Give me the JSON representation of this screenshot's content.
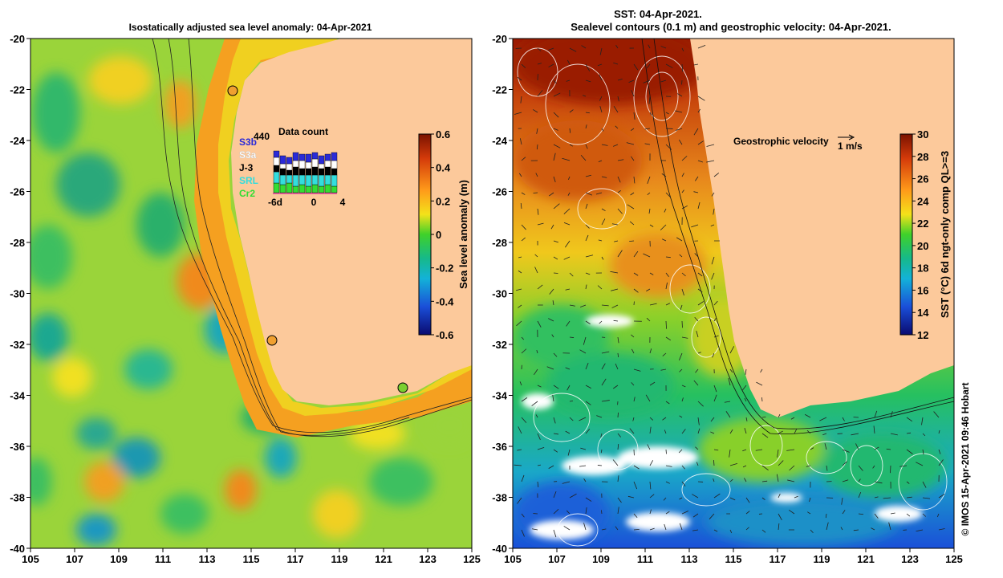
{
  "left_panel": {
    "title": "Isostatically adjusted sea level anomaly: 04-Apr-2021",
    "xticks": [
      "105",
      "107",
      "109",
      "111",
      "113",
      "115",
      "117",
      "119",
      "121",
      "123",
      "125"
    ],
    "yticks": [
      "-20",
      "-22",
      "-24",
      "-26",
      "-28",
      "-30",
      "-32",
      "-34",
      "-36",
      "-38",
      "-40"
    ],
    "colorbar": {
      "label": "Sea level anomaly (m)",
      "ticks": [
        "0.6",
        "0.4",
        "0.2",
        "0",
        "-0.2",
        "-0.4",
        "-0.6"
      ],
      "range": [
        -0.6,
        0.6
      ]
    },
    "data_count": {
      "title": "Data count",
      "max_label": "440",
      "x_labels": [
        "-6d",
        "0",
        "4"
      ],
      "satellites": [
        {
          "name": "S3b",
          "color": "#2a2ad8"
        },
        {
          "name": "S3a",
          "color": "#ffffff"
        },
        {
          "name": "J-3",
          "color": "#000000"
        },
        {
          "name": "SRL",
          "color": "#33dddd"
        },
        {
          "name": "Cr2",
          "color": "#33dd33"
        }
      ]
    }
  },
  "right_panel": {
    "title_line1": "SST: 04-Apr-2021.",
    "title_line2": "Sealevel contours (0.1 m) and geostrophic velocity: 04-Apr-2021.",
    "xticks": [
      "105",
      "107",
      "109",
      "111",
      "113",
      "115",
      "117",
      "119",
      "121",
      "123",
      "125"
    ],
    "yticks": [
      "-20",
      "-22",
      "-24",
      "-26",
      "-28",
      "-30",
      "-32",
      "-34",
      "-36",
      "-38",
      "-40"
    ],
    "velocity_label": "Geostrophic velocity",
    "velocity_scale": "1 m/s",
    "colorbar": {
      "label": "SST (°C) 6d ngt-only comp QL>=3",
      "ticks": [
        "30",
        "28",
        "26",
        "24",
        "22",
        "20",
        "18",
        "16",
        "14",
        "12"
      ],
      "range": [
        12,
        30
      ]
    }
  },
  "credit": "© IMOS 15-Apr-2021 09:46 Hobart",
  "colors": {
    "land": "#fcc99b",
    "background": "#ffffff"
  }
}
